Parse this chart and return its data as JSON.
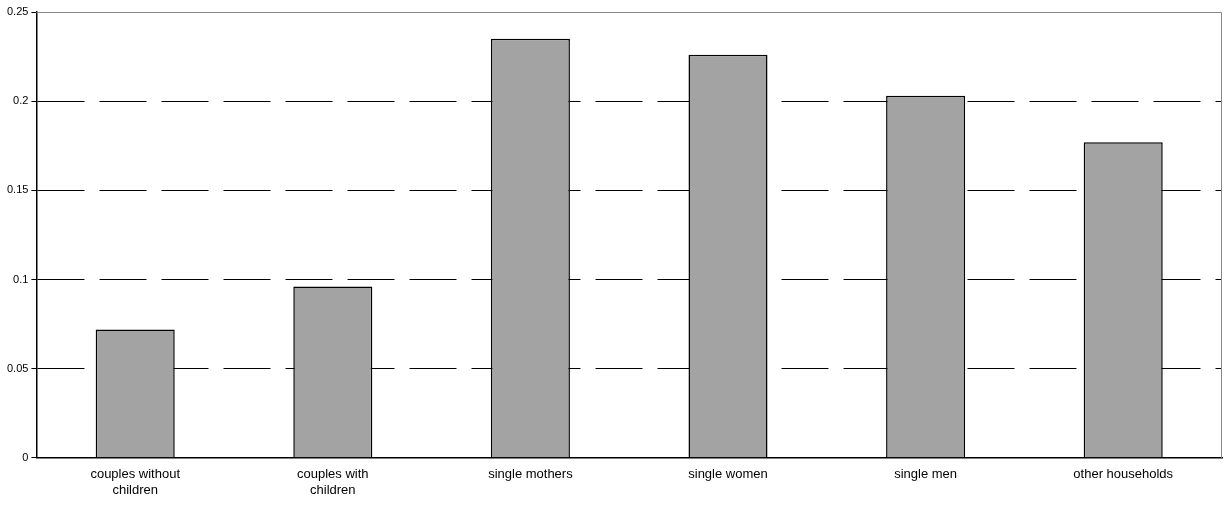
{
  "chart_data": {
    "type": "bar",
    "categories": [
      "couples without children",
      "couples with children",
      "single mothers",
      "single women",
      "single men",
      "other households"
    ],
    "values": [
      0.072,
      0.096,
      0.235,
      0.226,
      0.203,
      0.177
    ],
    "color": "#a3a3a3",
    "ylim": [
      0,
      0.25
    ],
    "yticks": [
      0,
      0.05,
      0.1,
      0.15,
      0.2,
      0.25
    ],
    "grid": "y",
    "legend": false
  }
}
